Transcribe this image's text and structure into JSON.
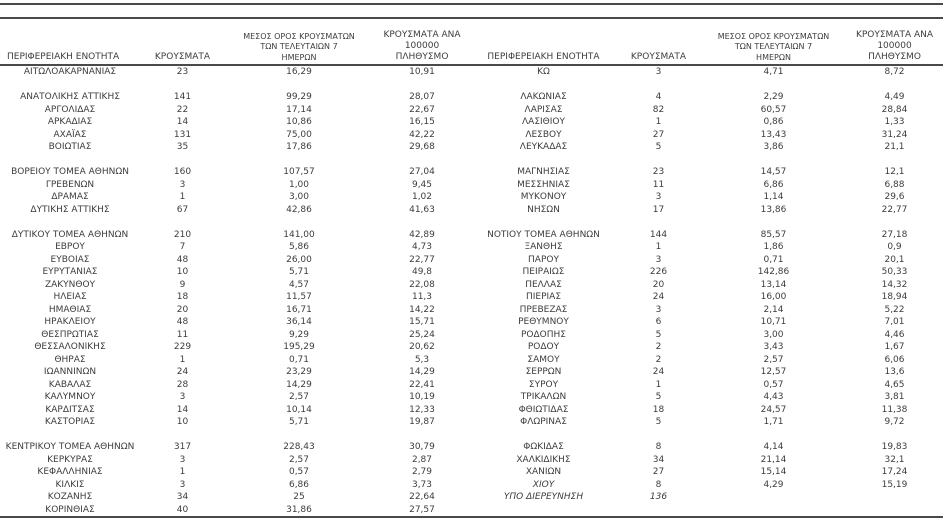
{
  "page": {
    "background_color": "#ffffff",
    "text_color": "#3d3d3d",
    "rule_color": "#4a4a4a"
  },
  "table": {
    "headers": {
      "region": "ΠΕΡΙΦΕΡΕΙΑΚΗ ΕΝΟΤΗΤΑ",
      "cases": "ΚΡΟΥΣΜΑΤΑ",
      "avg7_lines": [
        "ΜΕΣΟΣ ΟΡΟΣ ΚΡΟΥΣΜΑΤΩΝ",
        "ΤΩΝ ΤΕΛΕΥΤΑΙΩΝ 7",
        "ΗΜΕΡΩΝ"
      ],
      "per100k_lines": [
        "ΚΡΟΥΣΜΑΤΑ ΑΝΑ 100000",
        "ΠΛΗΘΥΣΜΟ"
      ]
    },
    "left_rows": [
      {
        "region": "ΑΙΤΩΛΟΑΚΑΡΝΑΝΙΑΣ",
        "cases": "23",
        "avg7": "16,29",
        "per100k": "10,91"
      },
      null,
      {
        "region": "ΑΝΑΤΟΛΙΚΗΣ ΑΤΤΙΚΗΣ",
        "cases": "141",
        "avg7": "99,29",
        "per100k": "28,07"
      },
      {
        "region": "ΑΡΓΟΛΙΔΑΣ",
        "cases": "22",
        "avg7": "17,14",
        "per100k": "22,67"
      },
      {
        "region": "ΑΡΚΑΔΙΑΣ",
        "cases": "14",
        "avg7": "10,86",
        "per100k": "16,15"
      },
      {
        "region": "ΑΧΑΪΑΣ",
        "cases": "131",
        "avg7": "75,00",
        "per100k": "42,22"
      },
      {
        "region": "ΒΟΙΩΤΙΑΣ",
        "cases": "35",
        "avg7": "17,86",
        "per100k": "29,68"
      },
      null,
      {
        "region": "ΒΟΡΕΙΟΥ ΤΟΜΕΑ ΑΘΗΝΩΝ",
        "cases": "160",
        "avg7": "107,57",
        "per100k": "27,04"
      },
      {
        "region": "ΓΡΕΒΕΝΩΝ",
        "cases": "3",
        "avg7": "1,00",
        "per100k": "9,45"
      },
      {
        "region": "ΔΡΑΜΑΣ",
        "cases": "1",
        "avg7": "3,00",
        "per100k": "1,02"
      },
      {
        "region": "ΔΥΤΙΚΗΣ ΑΤΤΙΚΗΣ",
        "cases": "67",
        "avg7": "42,86",
        "per100k": "41,63"
      },
      null,
      {
        "region": "ΔΥΤΙΚΟΥ ΤΟΜΕΑ ΑΘΗΝΩΝ",
        "cases": "210",
        "avg7": "141,00",
        "per100k": "42,89"
      },
      {
        "region": "ΕΒΡΟΥ",
        "cases": "7",
        "avg7": "5,86",
        "per100k": "4,73"
      },
      {
        "region": "ΕΥΒΟΙΑΣ",
        "cases": "48",
        "avg7": "26,00",
        "per100k": "22,77"
      },
      {
        "region": "ΕΥΡΥΤΑΝΙΑΣ",
        "cases": "10",
        "avg7": "5,71",
        "per100k": "49,8"
      },
      {
        "region": "ΖΑΚΥΝΘΟΥ",
        "cases": "9",
        "avg7": "4,57",
        "per100k": "22,08"
      },
      {
        "region": "ΗΛΕΙΑΣ",
        "cases": "18",
        "avg7": "11,57",
        "per100k": "11,3"
      },
      {
        "region": "ΗΜΑΘΙΑΣ",
        "cases": "20",
        "avg7": "16,71",
        "per100k": "14,22"
      },
      {
        "region": "ΗΡΑΚΛΕΙΟΥ",
        "cases": "48",
        "avg7": "36,14",
        "per100k": "15,71"
      },
      {
        "region": "ΘΕΣΠΡΩΤΙΑΣ",
        "cases": "11",
        "avg7": "9,29",
        "per100k": "25,24"
      },
      {
        "region": "ΘΕΣΣΑΛΟΝΙΚΗΣ",
        "cases": "229",
        "avg7": "195,29",
        "per100k": "20,62"
      },
      {
        "region": "ΘΗΡΑΣ",
        "cases": "1",
        "avg7": "0,71",
        "per100k": "5,3"
      },
      {
        "region": "ΙΩΑΝΝΙΝΩΝ",
        "cases": "24",
        "avg7": "23,29",
        "per100k": "14,29"
      },
      {
        "region": "ΚΑΒΑΛΑΣ",
        "cases": "28",
        "avg7": "14,29",
        "per100k": "22,41"
      },
      {
        "region": "ΚΑΛΥΜΝΟΥ",
        "cases": "3",
        "avg7": "2,57",
        "per100k": "10,19"
      },
      {
        "region": "ΚΑΡΔΙΤΣΑΣ",
        "cases": "14",
        "avg7": "10,14",
        "per100k": "12,33"
      },
      {
        "region": "ΚΑΣΤΟΡΙΑΣ",
        "cases": "10",
        "avg7": "5,71",
        "per100k": "19,87"
      },
      null,
      {
        "region": "ΚΕΝΤΡΙΚΟΥ ΤΟΜΕΑ ΑΘΗΝΩΝ",
        "cases": "317",
        "avg7": "228,43",
        "per100k": "30,79"
      },
      {
        "region": "ΚΕΡΚΥΡΑΣ",
        "cases": "3",
        "avg7": "2,57",
        "per100k": "2,87"
      },
      {
        "region": "ΚΕΦΑΛΛΗΝΙΑΣ",
        "cases": "1",
        "avg7": "0,57",
        "per100k": "2,79"
      },
      {
        "region": "ΚΙΛΚΙΣ",
        "cases": "3",
        "avg7": "6,86",
        "per100k": "3,73"
      },
      {
        "region": "ΚΟΖΑΝΗΣ",
        "cases": "34",
        "avg7": "25",
        "per100k": "22,64"
      },
      {
        "region": "ΚΟΡΙΝΘΙΑΣ",
        "cases": "40",
        "avg7": "31,86",
        "per100k": "27,57"
      }
    ],
    "right_rows": [
      {
        "region": "ΚΩ",
        "cases": "3",
        "avg7": "4,71",
        "per100k": "8,72"
      },
      null,
      {
        "region": "ΛΑΚΩΝΙΑΣ",
        "cases": "4",
        "avg7": "2,29",
        "per100k": "4,49"
      },
      {
        "region": "ΛΑΡΙΣΑΣ",
        "cases": "82",
        "avg7": "60,57",
        "per100k": "28,84"
      },
      {
        "region": "ΛΑΣΙΘΙΟΥ",
        "cases": "1",
        "avg7": "0,86",
        "per100k": "1,33"
      },
      {
        "region": "ΛΕΣΒΟΥ",
        "cases": "27",
        "avg7": "13,43",
        "per100k": "31,24"
      },
      {
        "region": "ΛΕΥΚΑΔΑΣ",
        "cases": "5",
        "avg7": "3,86",
        "per100k": "21,1"
      },
      null,
      {
        "region": "ΜΑΓΝΗΣΙΑΣ",
        "cases": "23",
        "avg7": "14,57",
        "per100k": "12,1"
      },
      {
        "region": "ΜΕΣΣΗΝΙΑΣ",
        "cases": "11",
        "avg7": "6,86",
        "per100k": "6,88"
      },
      {
        "region": "ΜΥΚΟΝΟΥ",
        "cases": "3",
        "avg7": "1,14",
        "per100k": "29,6"
      },
      {
        "region": "ΝΗΣΩΝ",
        "cases": "17",
        "avg7": "13,86",
        "per100k": "22,77"
      },
      null,
      {
        "region": "ΝΟΤΙΟΥ ΤΟΜΕΑ ΑΘΗΝΩΝ",
        "cases": "144",
        "avg7": "85,57",
        "per100k": "27,18"
      },
      {
        "region": "ΞΑΝΘΗΣ",
        "cases": "1",
        "avg7": "1,86",
        "per100k": "0,9"
      },
      {
        "region": "ΠΑΡΟΥ",
        "cases": "3",
        "avg7": "0,71",
        "per100k": "20,1"
      },
      {
        "region": "ΠΕΙΡΑΙΩΣ",
        "cases": "226",
        "avg7": "142,86",
        "per100k": "50,33"
      },
      {
        "region": "ΠΕΛΛΑΣ",
        "cases": "20",
        "avg7": "13,14",
        "per100k": "14,32"
      },
      {
        "region": "ΠΙΕΡΙΑΣ",
        "cases": "24",
        "avg7": "16,00",
        "per100k": "18,94"
      },
      {
        "region": "ΠΡΕΒΕΖΑΣ",
        "cases": "3",
        "avg7": "2,14",
        "per100k": "5,22"
      },
      {
        "region": "ΡΕΘΥΜΝΟΥ",
        "cases": "6",
        "avg7": "10,71",
        "per100k": "7,01"
      },
      {
        "region": "ΡΟΔΟΠΗΣ",
        "cases": "5",
        "avg7": "3,00",
        "per100k": "4,46"
      },
      {
        "region": "ΡΟΔΟΥ",
        "cases": "2",
        "avg7": "3,43",
        "per100k": "1,67"
      },
      {
        "region": "ΣΑΜΟΥ",
        "cases": "2",
        "avg7": "2,57",
        "per100k": "6,06"
      },
      {
        "region": "ΣΕΡΡΩΝ",
        "cases": "24",
        "avg7": "12,57",
        "per100k": "13,6"
      },
      {
        "region": "ΣΥΡΟΥ",
        "cases": "1",
        "avg7": "0,57",
        "per100k": "4,65"
      },
      {
        "region": "ΤΡΙΚΑΛΩΝ",
        "cases": "5",
        "avg7": "4,43",
        "per100k": "3,81"
      },
      {
        "region": "ΦΘΙΩΤΙΔΑΣ",
        "cases": "18",
        "avg7": "24,57",
        "per100k": "11,38"
      },
      {
        "region": "ΦΛΩΡΙΝΑΣ",
        "cases": "5",
        "avg7": "1,71",
        "per100k": "9,72"
      },
      null,
      {
        "region": "ΦΩΚΙΔΑΣ",
        "cases": "8",
        "avg7": "4,14",
        "per100k": "19,83"
      },
      {
        "region": "ΧΑΛΚΙΔΙΚΗΣ",
        "cases": "34",
        "avg7": "21,14",
        "per100k": "32,1"
      },
      {
        "region": "ΧΑΝΙΩΝ",
        "cases": "27",
        "avg7": "15,14",
        "per100k": "17,24"
      },
      {
        "region": "ΧΙΟΥ",
        "cases": "8",
        "avg7": "4,29",
        "per100k": "15,19",
        "italic": [
          "region"
        ]
      },
      {
        "region": "ΥΠΟ ΔΙΕΡΕΥΝΗΣΗ",
        "cases": "136",
        "avg7": "",
        "per100k": "",
        "italic": [
          "region",
          "cases"
        ]
      },
      null
    ]
  }
}
